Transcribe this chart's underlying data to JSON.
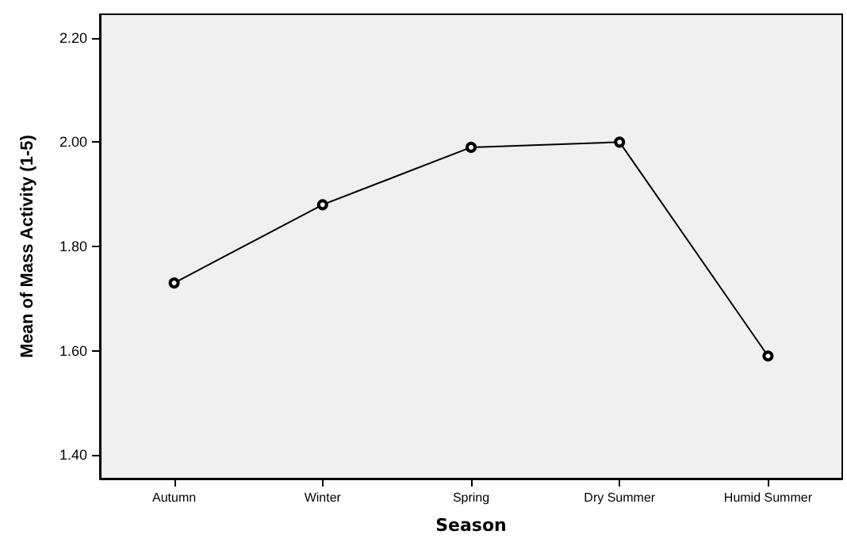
{
  "chart_data": {
    "type": "line",
    "xlabel": "Season",
    "ylabel": "Mean of Mass Activity (1-5)",
    "categories": [
      "Autumn",
      "Winter",
      "Spring",
      "Dry Summer",
      "Humid Summer"
    ],
    "values": [
      1.73,
      1.88,
      1.99,
      2.0,
      1.59
    ],
    "color": "#000000",
    "marker": "circle",
    "line_style": "solid",
    "ylim": [
      1.355,
      2.245
    ],
    "yticks": [
      {
        "value": 1.4,
        "label": "1.40"
      },
      {
        "value": 1.6,
        "label": "1.60"
      },
      {
        "value": 1.8,
        "label": "1.80"
      },
      {
        "value": 2.0,
        "label": "2.00"
      },
      {
        "value": 2.2,
        "label": "2.20"
      }
    ],
    "grid": false
  }
}
